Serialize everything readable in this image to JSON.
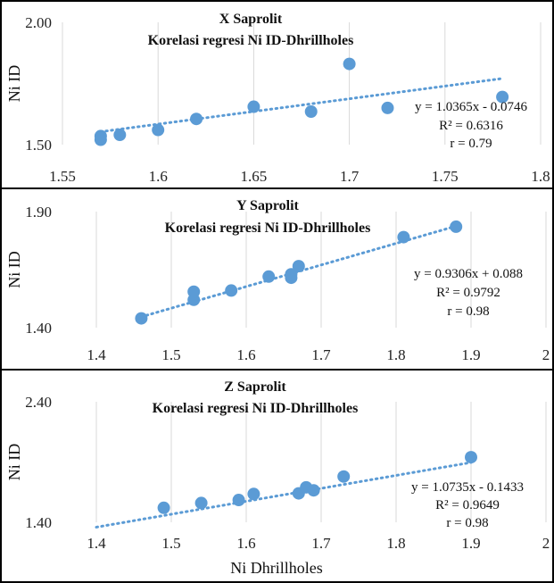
{
  "chart_data": [
    {
      "type": "scatter",
      "title": "X Saprolit",
      "subtitle": "Korelasi regresi Ni ID-Dhrillholes",
      "xlabel": "",
      "ylabel": "Ni ID",
      "xlim": [
        1.55,
        1.8
      ],
      "ylim": [
        1.5,
        2.0
      ],
      "xticks": [
        1.55,
        1.6,
        1.65,
        1.7,
        1.75,
        1.8
      ],
      "xtick_labels": [
        "1.55",
        "1.6",
        "1.65",
        "1.7",
        "1.75",
        "1.8"
      ],
      "yticks": [
        1.5,
        2.0
      ],
      "ytick_labels": [
        "1.50",
        "2.00"
      ],
      "grid": "vertical",
      "points": [
        {
          "x": 1.57,
          "y": 1.52
        },
        {
          "x": 1.57,
          "y": 1.535
        },
        {
          "x": 1.58,
          "y": 1.54
        },
        {
          "x": 1.6,
          "y": 1.56
        },
        {
          "x": 1.62,
          "y": 1.605
        },
        {
          "x": 1.65,
          "y": 1.655
        },
        {
          "x": 1.68,
          "y": 1.635
        },
        {
          "x": 1.7,
          "y": 1.83
        },
        {
          "x": 1.72,
          "y": 1.65
        },
        {
          "x": 1.78,
          "y": 1.695
        }
      ],
      "trendline": {
        "slope": 1.0365,
        "intercept": -0.0746,
        "style": "dotted",
        "x_range": [
          1.57,
          1.78
        ]
      },
      "annotations": [
        "y = 1.0365x - 0.0746",
        "R² = 0.6316",
        "r = 0.79"
      ],
      "marker_color": "#5b9bd5",
      "trend_color": "#5b9bd5"
    },
    {
      "type": "scatter",
      "title": "Y Saprolit",
      "subtitle": "Korelasi regresi Ni ID-Dhrillholes",
      "xlabel": "",
      "ylabel": "Ni ID",
      "xlim": [
        1.4,
        2.0
      ],
      "ylim": [
        1.4,
        1.9
      ],
      "xticks": [
        1.4,
        1.5,
        1.6,
        1.7,
        1.8,
        1.9,
        2.0
      ],
      "xtick_labels": [
        "1.4",
        "1.5",
        "1.6",
        "1.7",
        "1.8",
        "1.9",
        "2"
      ],
      "yticks": [
        1.4,
        1.9
      ],
      "ytick_labels": [
        "1.40",
        "1.90"
      ],
      "grid": "vertical",
      "points": [
        {
          "x": 1.46,
          "y": 1.44
        },
        {
          "x": 1.53,
          "y": 1.52
        },
        {
          "x": 1.53,
          "y": 1.555
        },
        {
          "x": 1.58,
          "y": 1.56
        },
        {
          "x": 1.63,
          "y": 1.62
        },
        {
          "x": 1.66,
          "y": 1.615
        },
        {
          "x": 1.66,
          "y": 1.63
        },
        {
          "x": 1.67,
          "y": 1.665
        },
        {
          "x": 1.81,
          "y": 1.79
        },
        {
          "x": 1.88,
          "y": 1.835
        }
      ],
      "trendline": {
        "slope": 0.9306,
        "intercept": 0.088,
        "style": "dotted",
        "x_range": [
          1.46,
          1.88
        ]
      },
      "annotations": [
        "y = 0.9306x + 0.088",
        "R² = 0.9792",
        "r = 0.98"
      ],
      "marker_color": "#5b9bd5",
      "trend_color": "#5b9bd5"
    },
    {
      "type": "scatter",
      "title": "Z Saprolit",
      "subtitle": "Korelasi regresi Ni ID-Dhrillholes",
      "xlabel": "Ni Dhrillholes",
      "ylabel": "Ni ID",
      "xlim": [
        1.4,
        2.0
      ],
      "ylim": [
        1.4,
        2.4
      ],
      "xticks": [
        1.4,
        1.5,
        1.6,
        1.7,
        1.8,
        1.9,
        2.0
      ],
      "xtick_labels": [
        "1.4",
        "1.5",
        "1.6",
        "1.7",
        "1.8",
        "1.9",
        "2"
      ],
      "yticks": [
        1.4,
        2.4
      ],
      "ytick_labels": [
        "1.40",
        "2.40"
      ],
      "grid": "vertical",
      "points": [
        {
          "x": 1.49,
          "y": 1.52
        },
        {
          "x": 1.54,
          "y": 1.56
        },
        {
          "x": 1.59,
          "y": 1.585
        },
        {
          "x": 1.61,
          "y": 1.635
        },
        {
          "x": 1.67,
          "y": 1.64
        },
        {
          "x": 1.68,
          "y": 1.69
        },
        {
          "x": 1.69,
          "y": 1.665
        },
        {
          "x": 1.73,
          "y": 1.78
        },
        {
          "x": 1.9,
          "y": 1.94
        }
      ],
      "trendline": {
        "slope": 1.0735,
        "intercept": -0.1433,
        "style": "dotted",
        "x_range": [
          1.4,
          1.9
        ]
      },
      "annotations": [
        "y = 1.0735x - 0.1433",
        "R² = 0.9649",
        "r = 0.98"
      ],
      "marker_color": "#5b9bd5",
      "trend_color": "#5b9bd5"
    }
  ]
}
